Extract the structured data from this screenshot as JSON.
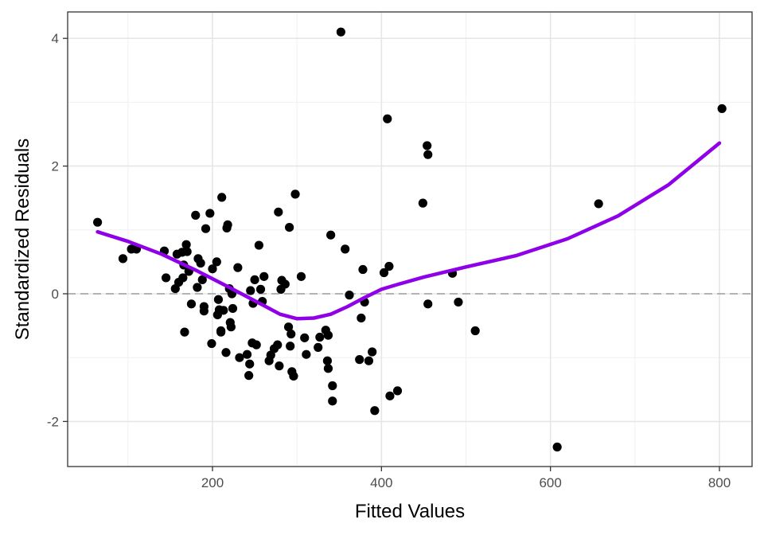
{
  "chart_data": {
    "type": "scatter",
    "xlabel": "Fitted Values",
    "ylabel": "Standardized Residuals",
    "xlim": [
      30,
      830
    ],
    "ylim": [
      -2.7,
      4.2
    ],
    "x_ticks": [
      200,
      400,
      600,
      800
    ],
    "y_ticks": [
      -2,
      0,
      2,
      4
    ],
    "x_tick_labels": [
      "200",
      "400",
      "600",
      "800"
    ],
    "y_tick_labels": [
      "-2",
      "0",
      "2",
      "4"
    ],
    "grid": true,
    "reference_line_y": 0,
    "points": [
      [
        64,
        1.12
      ],
      [
        94,
        0.55
      ],
      [
        104,
        0.7
      ],
      [
        110,
        0.7
      ],
      [
        143,
        0.67
      ],
      [
        145,
        0.25
      ],
      [
        156,
        0.08
      ],
      [
        158,
        0.62
      ],
      [
        160,
        0.18
      ],
      [
        164,
        0.65
      ],
      [
        165,
        0.25
      ],
      [
        166,
        0.45
      ],
      [
        167,
        -0.6
      ],
      [
        169,
        0.77
      ],
      [
        170,
        0.66
      ],
      [
        172,
        0.35
      ],
      [
        175,
        -0.16
      ],
      [
        180,
        1.23
      ],
      [
        182,
        0.1
      ],
      [
        183,
        0.55
      ],
      [
        186,
        0.48
      ],
      [
        188,
        0.22
      ],
      [
        190,
        -0.2
      ],
      [
        190,
        -0.27
      ],
      [
        192,
        1.02
      ],
      [
        197,
        1.26
      ],
      [
        199,
        -0.78
      ],
      [
        200,
        0.39
      ],
      [
        205,
        0.5
      ],
      [
        206,
        -0.33
      ],
      [
        207,
        -0.09
      ],
      [
        208,
        -0.25
      ],
      [
        210,
        -0.6
      ],
      [
        210,
        -0.58
      ],
      [
        211,
        1.51
      ],
      [
        213,
        -0.26
      ],
      [
        216,
        -0.92
      ],
      [
        217,
        1.03
      ],
      [
        218,
        1.08
      ],
      [
        220,
        0.08
      ],
      [
        221,
        -0.45
      ],
      [
        222,
        -0.52
      ],
      [
        223,
        0.0
      ],
      [
        224,
        -0.23
      ],
      [
        230,
        0.41
      ],
      [
        232,
        -1.0
      ],
      [
        241,
        -0.95
      ],
      [
        243,
        -1.28
      ],
      [
        244,
        -1.1
      ],
      [
        245,
        0.05
      ],
      [
        247,
        -0.77
      ],
      [
        248,
        -0.15
      ],
      [
        250,
        0.22
      ],
      [
        252,
        -0.8
      ],
      [
        255,
        0.76
      ],
      [
        257,
        0.07
      ],
      [
        259,
        -0.12
      ],
      [
        261,
        0.27
      ],
      [
        267,
        -1.05
      ],
      [
        269,
        -0.96
      ],
      [
        273,
        -0.86
      ],
      [
        277,
        -0.8
      ],
      [
        278,
        1.28
      ],
      [
        279,
        -1.13
      ],
      [
        281,
        0.07
      ],
      [
        282,
        0.21
      ],
      [
        286,
        0.15
      ],
      [
        290,
        -0.52
      ],
      [
        291,
        1.04
      ],
      [
        292,
        -0.82
      ],
      [
        293,
        -0.63
      ],
      [
        294,
        -1.22
      ],
      [
        296,
        -1.29
      ],
      [
        298,
        1.56
      ],
      [
        305,
        0.27
      ],
      [
        309,
        -0.69
      ],
      [
        311,
        -0.95
      ],
      [
        325,
        -0.84
      ],
      [
        327,
        -0.68
      ],
      [
        334,
        -0.57
      ],
      [
        336,
        -1.05
      ],
      [
        337,
        -0.65
      ],
      [
        337,
        -1.17
      ],
      [
        340,
        0.92
      ],
      [
        342,
        -1.44
      ],
      [
        342,
        -1.68
      ],
      [
        357,
        0.7
      ],
      [
        362,
        -0.02
      ],
      [
        374,
        -1.03
      ],
      [
        376,
        -0.38
      ],
      [
        378,
        0.38
      ],
      [
        380,
        -0.13
      ],
      [
        385,
        -1.05
      ],
      [
        389,
        -0.91
      ],
      [
        392,
        -1.83
      ],
      [
        403,
        0.33
      ],
      [
        409,
        0.43
      ],
      [
        410,
        -1.6
      ],
      [
        419,
        -1.52
      ],
      [
        352,
        4.1
      ],
      [
        407,
        2.74
      ],
      [
        449,
        1.42
      ],
      [
        454,
        2.32
      ],
      [
        455,
        2.18
      ],
      [
        455,
        -0.16
      ],
      [
        484,
        0.32
      ],
      [
        491,
        -0.13
      ],
      [
        511,
        -0.58
      ],
      [
        608,
        -2.4
      ],
      [
        657,
        1.41
      ],
      [
        803,
        2.9
      ]
    ],
    "smooth_line": {
      "color": "#8f00e8",
      "x": [
        64,
        100,
        140,
        180,
        220,
        260,
        280,
        300,
        320,
        340,
        360,
        380,
        400,
        420,
        450,
        500,
        560,
        620,
        680,
        740,
        800
      ],
      "y": [
        0.97,
        0.82,
        0.62,
        0.37,
        0.1,
        -0.18,
        -0.32,
        -0.39,
        -0.38,
        -0.32,
        -0.2,
        -0.06,
        0.07,
        0.15,
        0.26,
        0.42,
        0.6,
        0.86,
        1.22,
        1.71,
        2.36
      ]
    },
    "point_color": "#000000",
    "reference_line_color": "#b3b3b3"
  }
}
